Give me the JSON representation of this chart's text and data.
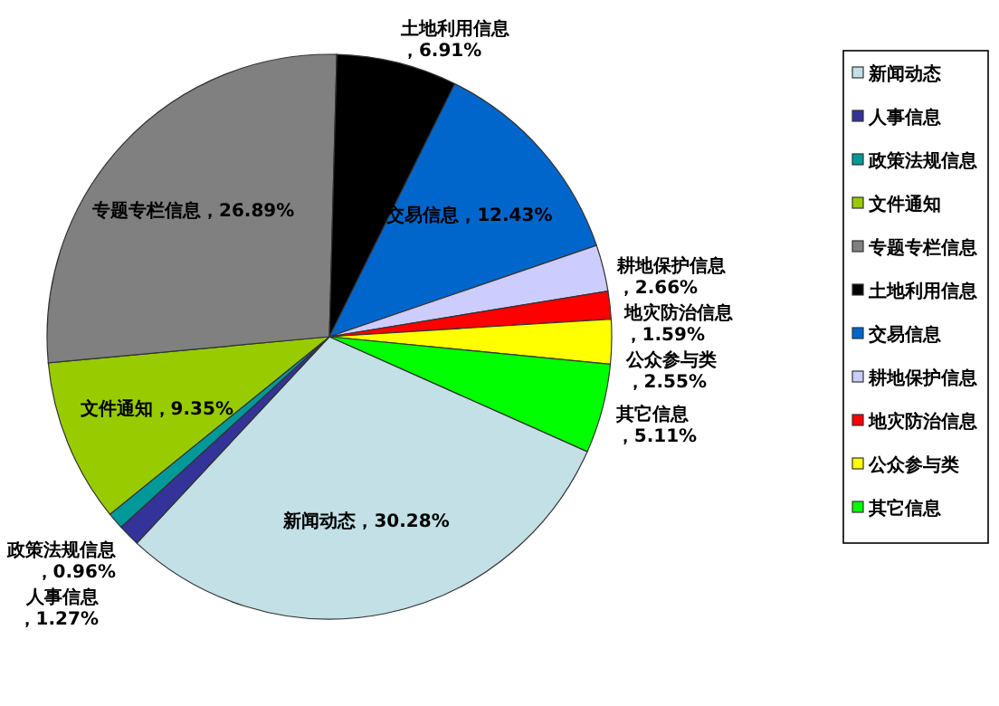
{
  "chart_data": {
    "type": "pie",
    "categories": [
      "新闻动态",
      "人事信息",
      "政策法规信息",
      "文件通知",
      "专题专栏信息",
      "土地利用信息",
      "交易信息",
      "耕地保护信息",
      "地灾防治信息",
      "公众参与类",
      "其它信息"
    ],
    "values": [
      30.28,
      1.27,
      0.96,
      9.35,
      26.89,
      6.91,
      12.43,
      2.66,
      1.59,
      2.55,
      5.11
    ],
    "value_labels": [
      "，30.28%",
      "，1.27%",
      "，0.96%",
      "，9.35%",
      "，26.89%",
      "，6.91%",
      "，12.43%",
      "，2.66%",
      "，1.59%",
      "，2.55%",
      "，5.11%"
    ],
    "colors": [
      "#c2e0e6",
      "#333399",
      "#009999",
      "#99cc00",
      "#808080",
      "#000000",
      "#0066cc",
      "#ccccff",
      "#ff0000",
      "#ffff00",
      "#00ff00"
    ],
    "legend": "right"
  }
}
